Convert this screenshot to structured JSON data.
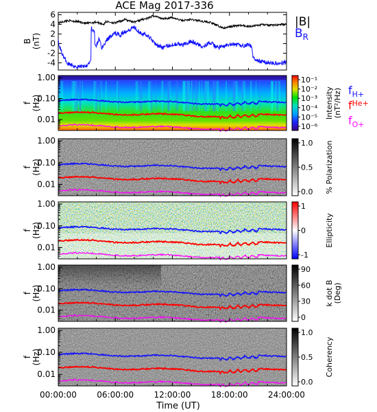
{
  "title": "ACE Mag 2017-336",
  "colors": {
    "h_plus": "#1010ff",
    "he_plus": "#ff0000",
    "o_plus": "#ff00ff",
    "bmag": "#000000",
    "br": "#1010ff"
  },
  "legend": {
    "bmag_label": "|B|",
    "br_main": "B",
    "br_sub": "R"
  },
  "chart_data": [
    {
      "type": "line",
      "panel": "field",
      "ylabel_main": "B",
      "ylabel_sub": "(nT)",
      "ylim": [
        -5.5,
        6.5
      ],
      "yticks": [
        6,
        4,
        2,
        0,
        -2,
        -4
      ],
      "ytick_labels": [
        "6",
        "4",
        "2",
        "0",
        "-2",
        "-4"
      ],
      "xlim": [
        0,
        24
      ],
      "series": [
        {
          "name": "|B|",
          "color": "#000000",
          "x": [
            0,
            1,
            2,
            3,
            4,
            4.8,
            5,
            6,
            7,
            8,
            9,
            9.5,
            10,
            11,
            12,
            13,
            14,
            15,
            16,
            17,
            17.5,
            18,
            19,
            20,
            21,
            21.5,
            22,
            23,
            24
          ],
          "y": [
            4.3,
            4.8,
            4.6,
            4.2,
            4.5,
            4.0,
            4.6,
            4.3,
            5.0,
            4.5,
            5.1,
            5.3,
            5.8,
            5.2,
            5.4,
            4.8,
            5.0,
            4.7,
            4.4,
            3.5,
            3.2,
            3.5,
            3.8,
            3.6,
            3.8,
            4.0,
            3.8,
            3.9,
            4.0
          ]
        },
        {
          "name": "B_R",
          "color": "#1010ff",
          "x": [
            0,
            0.3,
            0.6,
            1,
            1.5,
            2,
            2.5,
            3,
            3.4,
            3.5,
            3.7,
            4,
            4.3,
            4.6,
            5,
            5.5,
            6,
            6.5,
            7,
            7.5,
            8,
            8.5,
            9,
            9.5,
            10,
            10.5,
            11,
            11.5,
            12,
            12.5,
            13,
            13.5,
            14,
            14.5,
            15,
            15.5,
            16,
            16.5,
            17,
            17.5,
            18,
            18.5,
            19,
            19.5,
            20,
            20.3,
            20.5,
            21,
            21.5,
            22,
            22.5,
            23,
            23.5,
            24
          ],
          "y": [
            0.5,
            -1.5,
            -3.0,
            -4.0,
            -4.5,
            -4.8,
            -4.7,
            -4.5,
            -3.5,
            3.2,
            2.5,
            -0.5,
            1.0,
            -1.0,
            0.5,
            1.5,
            2.2,
            1.8,
            2.5,
            3.0,
            3.5,
            2.5,
            2.0,
            1.5,
            0.5,
            -0.5,
            -0.8,
            -0.5,
            -0.2,
            0.0,
            -0.4,
            0.2,
            0.5,
            0.0,
            -0.5,
            -0.3,
            0.2,
            -0.6,
            -0.8,
            -0.5,
            -0.3,
            -0.2,
            -0.3,
            -0.4,
            -0.2,
            -0.5,
            -3.0,
            -3.6,
            -3.8,
            -3.9,
            -4.0,
            -4.2,
            -4.0,
            -3.9
          ]
        }
      ]
    },
    {
      "type": "heatmap",
      "panel": "intensity",
      "ylabel_main": "f",
      "ylabel_sub": "(Hz)",
      "yticks": [
        "1.00",
        "0.10",
        "0.01"
      ],
      "colorbar": {
        "label": "Intensity",
        "unit": "(nT²/Hz)",
        "scale": "log",
        "ticks": [
          "10⁻¹",
          "10⁻²",
          "10⁻³",
          "10⁻⁴",
          "10⁻⁵",
          "10⁻⁶"
        ]
      }
    },
    {
      "type": "heatmap",
      "panel": "polarization",
      "ylabel_main": "f",
      "ylabel_sub": "(Hz)",
      "yticks": [
        "1.00",
        "0.10",
        "0.01"
      ],
      "colorbar": {
        "label": "% Polarization",
        "ticks": [
          "1.0",
          "0.5",
          "0.0"
        ]
      }
    },
    {
      "type": "heatmap",
      "panel": "ellipticity",
      "ylabel_main": "f",
      "ylabel_sub": "(Hz)",
      "yticks": [
        "1.00",
        "0.10",
        "0.01"
      ],
      "colorbar": {
        "label": "Ellipticity",
        "ticks": [
          "1",
          "0",
          "-1"
        ]
      }
    },
    {
      "type": "heatmap",
      "panel": "kdotb",
      "ylabel_main": "f",
      "ylabel_sub": "(Hz)",
      "yticks": [
        "1.00",
        "0.10",
        "0.01"
      ],
      "colorbar": {
        "label": "k dot B",
        "unit": "(Deg)",
        "ticks": [
          "90",
          "60",
          "30",
          "0"
        ]
      }
    },
    {
      "type": "heatmap",
      "panel": "coherency",
      "ylabel_main": "f",
      "ylabel_sub": "(Hz)",
      "yticks": [
        "1.00",
        "0.10",
        "0.01"
      ],
      "colorbar": {
        "label": "Coherency",
        "ticks": [
          "1.0",
          "0.5",
          "0.0"
        ]
      }
    }
  ],
  "gyro": {
    "labels": [
      {
        "main": "f",
        "sub": "H+",
        "color": "#1010ff"
      },
      {
        "main": "f",
        "sub": "He+",
        "color": "#ff0000"
      },
      {
        "main": "f",
        "sub": "O+",
        "color": "#ff00ff"
      }
    ],
    "h_plus_hz": 0.07,
    "he_plus_hz": 0.0175,
    "o_plus_hz": 0.0044
  },
  "xaxis": {
    "label": "Time (UT)",
    "ticks": [
      "00:00:00",
      "06:00:00",
      "12:00:00",
      "18:00:00",
      "24:00:00"
    ]
  }
}
